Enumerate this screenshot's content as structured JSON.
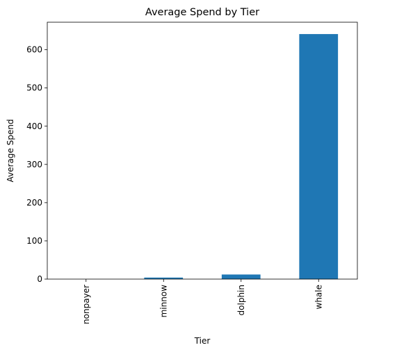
{
  "chart_data": {
    "type": "bar",
    "title": "Average Spend by Tier",
    "xlabel": "Tier",
    "ylabel": "Average Spend",
    "categories": [
      "nonpayer",
      "minnow",
      "dolphin",
      "whale"
    ],
    "values": [
      0,
      4,
      12,
      641
    ],
    "ylim": [
      0,
      672
    ],
    "yticks": [
      0,
      100,
      200,
      300,
      400,
      500,
      600
    ],
    "bar_color": "#1f77b4",
    "grid": false,
    "legend": "none"
  }
}
